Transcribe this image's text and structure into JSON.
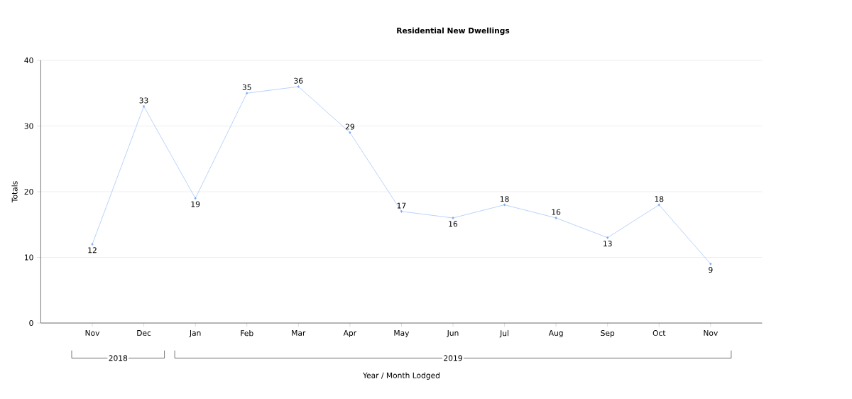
{
  "chart_data": {
    "type": "line",
    "title": "Residential New Dwellings",
    "xlabel": "Year / Month Lodged",
    "ylabel": "Totals",
    "categories": [
      "Nov",
      "Dec",
      "Jan",
      "Feb",
      "Mar",
      "Apr",
      "May",
      "Jun",
      "Jul",
      "Aug",
      "Sep",
      "Oct",
      "Nov"
    ],
    "series": [
      {
        "color": "#7aabf5",
        "values": [
          12,
          33,
          19,
          35,
          36,
          29,
          17,
          16,
          18,
          16,
          13,
          18,
          9
        ]
      }
    ],
    "ylim": [
      0,
      40
    ],
    "yticks": [
      0,
      10,
      20,
      30,
      40
    ],
    "grid": "y",
    "data_labels": true,
    "marker": "diamond",
    "line_style": "solid",
    "annotations": [
      "2018",
      "2019"
    ]
  }
}
